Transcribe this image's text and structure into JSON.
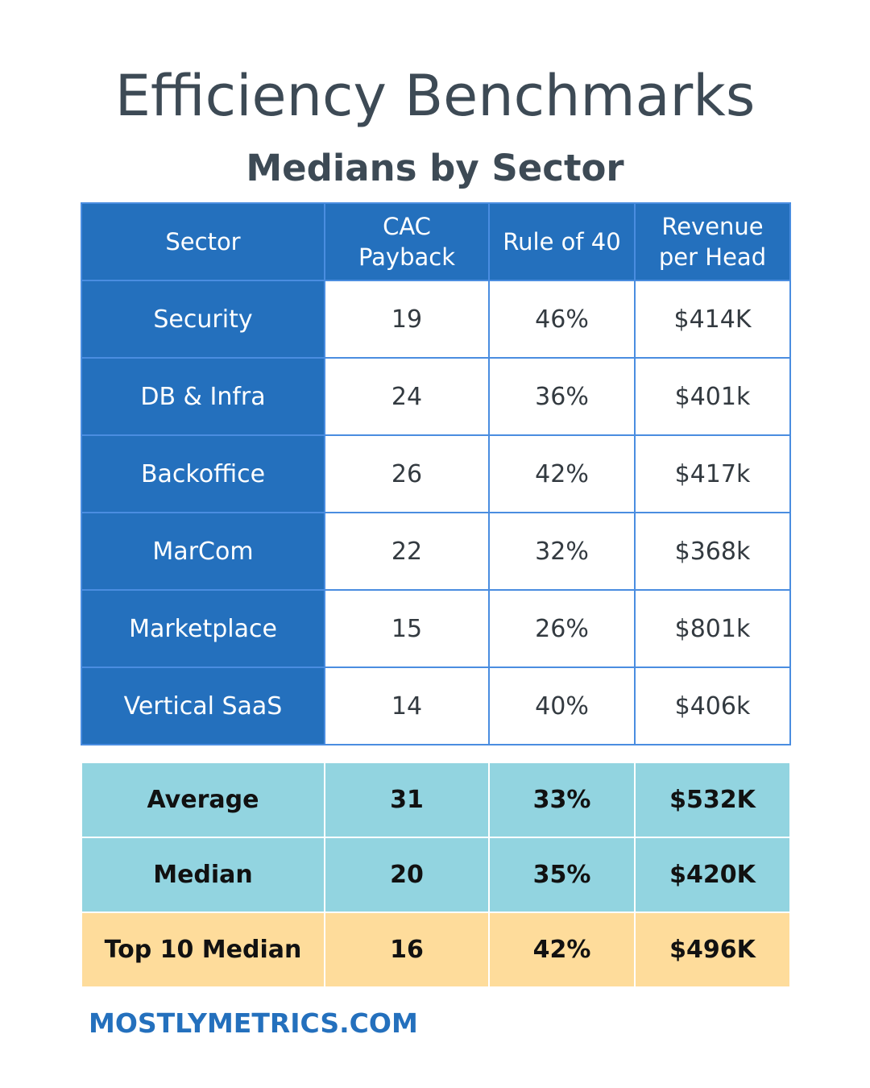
{
  "title": "Efficiency Benchmarks",
  "subtitle": "Medians by Sector",
  "footer": "MOSTLYMETRICS.COM",
  "colors": {
    "header_blue": "#2470bd",
    "border_blue": "#4a8de0",
    "summary_cyan": "#92d4e0",
    "summary_gold": "#fedc9b",
    "title_gray": "#3d4a55"
  },
  "chart_data": {
    "type": "table",
    "columns": [
      "Sector",
      "CAC Payback",
      "Rule of 40",
      "Revenue per Head"
    ],
    "rows": [
      [
        "Security",
        "19",
        "46%",
        "$414K"
      ],
      [
        "DB & Infra",
        "24",
        "36%",
        "$401k"
      ],
      [
        "Backoffice",
        "26",
        "42%",
        "$417k"
      ],
      [
        "MarCom",
        "22",
        "32%",
        "$368k"
      ],
      [
        "Marketplace",
        "15",
        "26%",
        "$801k"
      ],
      [
        "Vertical SaaS",
        "14",
        "40%",
        "$406k"
      ]
    ],
    "summary_rows": [
      [
        "Average",
        "31",
        "33%",
        "$532K"
      ],
      [
        "Median",
        "20",
        "35%",
        "$420K"
      ],
      [
        "Top 10 Median",
        "16",
        "42%",
        "$496K"
      ]
    ]
  }
}
